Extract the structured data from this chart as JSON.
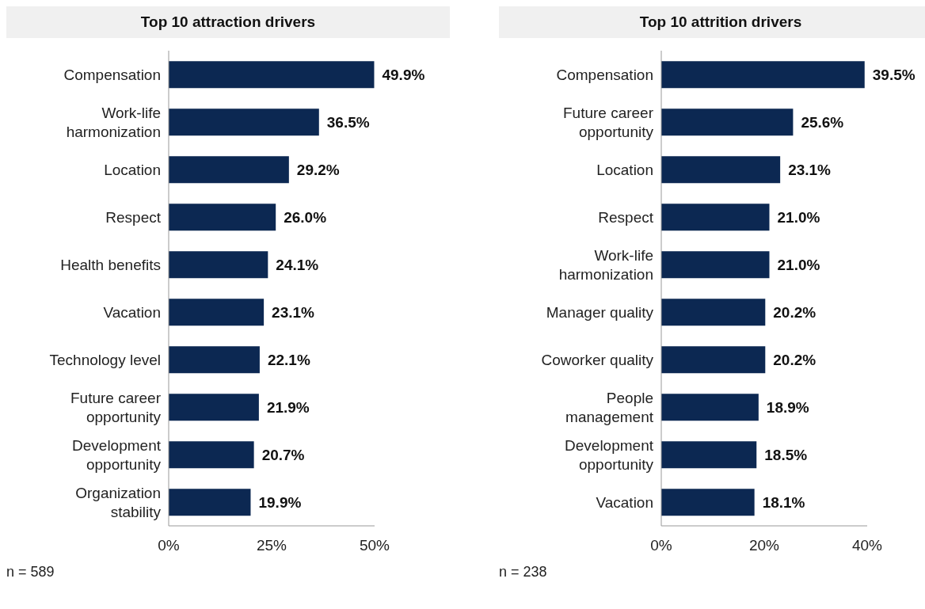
{
  "chart_data": [
    {
      "type": "bar",
      "orientation": "horizontal",
      "title": "Top 10 attraction drivers",
      "categories": [
        "Compensation",
        "Work-life harmonization",
        "Location",
        "Respect",
        "Health benefits",
        "Vacation",
        "Technology level",
        "Future career opportunity",
        "Development opportunity",
        "Organization stability"
      ],
      "values": [
        49.9,
        36.5,
        29.2,
        26.0,
        24.1,
        23.1,
        22.1,
        21.9,
        20.7,
        19.9
      ],
      "value_labels": [
        "49.9%",
        "36.5%",
        "29.2%",
        "26.0%",
        "24.1%",
        "23.1%",
        "22.1%",
        "21.9%",
        "20.7%",
        "19.9%"
      ],
      "color": "#0c2852",
      "xlim": [
        0,
        50
      ],
      "xticks": [
        {
          "value": 0,
          "label": "0%"
        },
        {
          "value": 25,
          "label": "25%"
        },
        {
          "value": 50,
          "label": "50%"
        }
      ],
      "grid": false,
      "legend": false,
      "annotations": [
        "n = 589"
      ]
    },
    {
      "type": "bar",
      "orientation": "horizontal",
      "title": "Top 10 attrition drivers",
      "categories": [
        "Compensation",
        "Future career opportunity",
        "Location",
        "Respect",
        "Work-life harmonization",
        "Manager quality",
        "Coworker quality",
        "People management",
        "Development opportunity",
        "Vacation"
      ],
      "values": [
        39.5,
        25.6,
        23.1,
        21.0,
        21.0,
        20.2,
        20.2,
        18.9,
        18.5,
        18.1
      ],
      "value_labels": [
        "39.5%",
        "25.6%",
        "23.1%",
        "21.0%",
        "21.0%",
        "20.2%",
        "20.2%",
        "18.9%",
        "18.5%",
        "18.1%"
      ],
      "color": "#0c2852",
      "xlim": [
        0,
        40
      ],
      "xticks": [
        {
          "value": 0,
          "label": "0%"
        },
        {
          "value": 20,
          "label": "20%"
        },
        {
          "value": 40,
          "label": "40%"
        }
      ],
      "grid": false,
      "legend": false,
      "annotations": [
        "n = 238"
      ]
    }
  ]
}
